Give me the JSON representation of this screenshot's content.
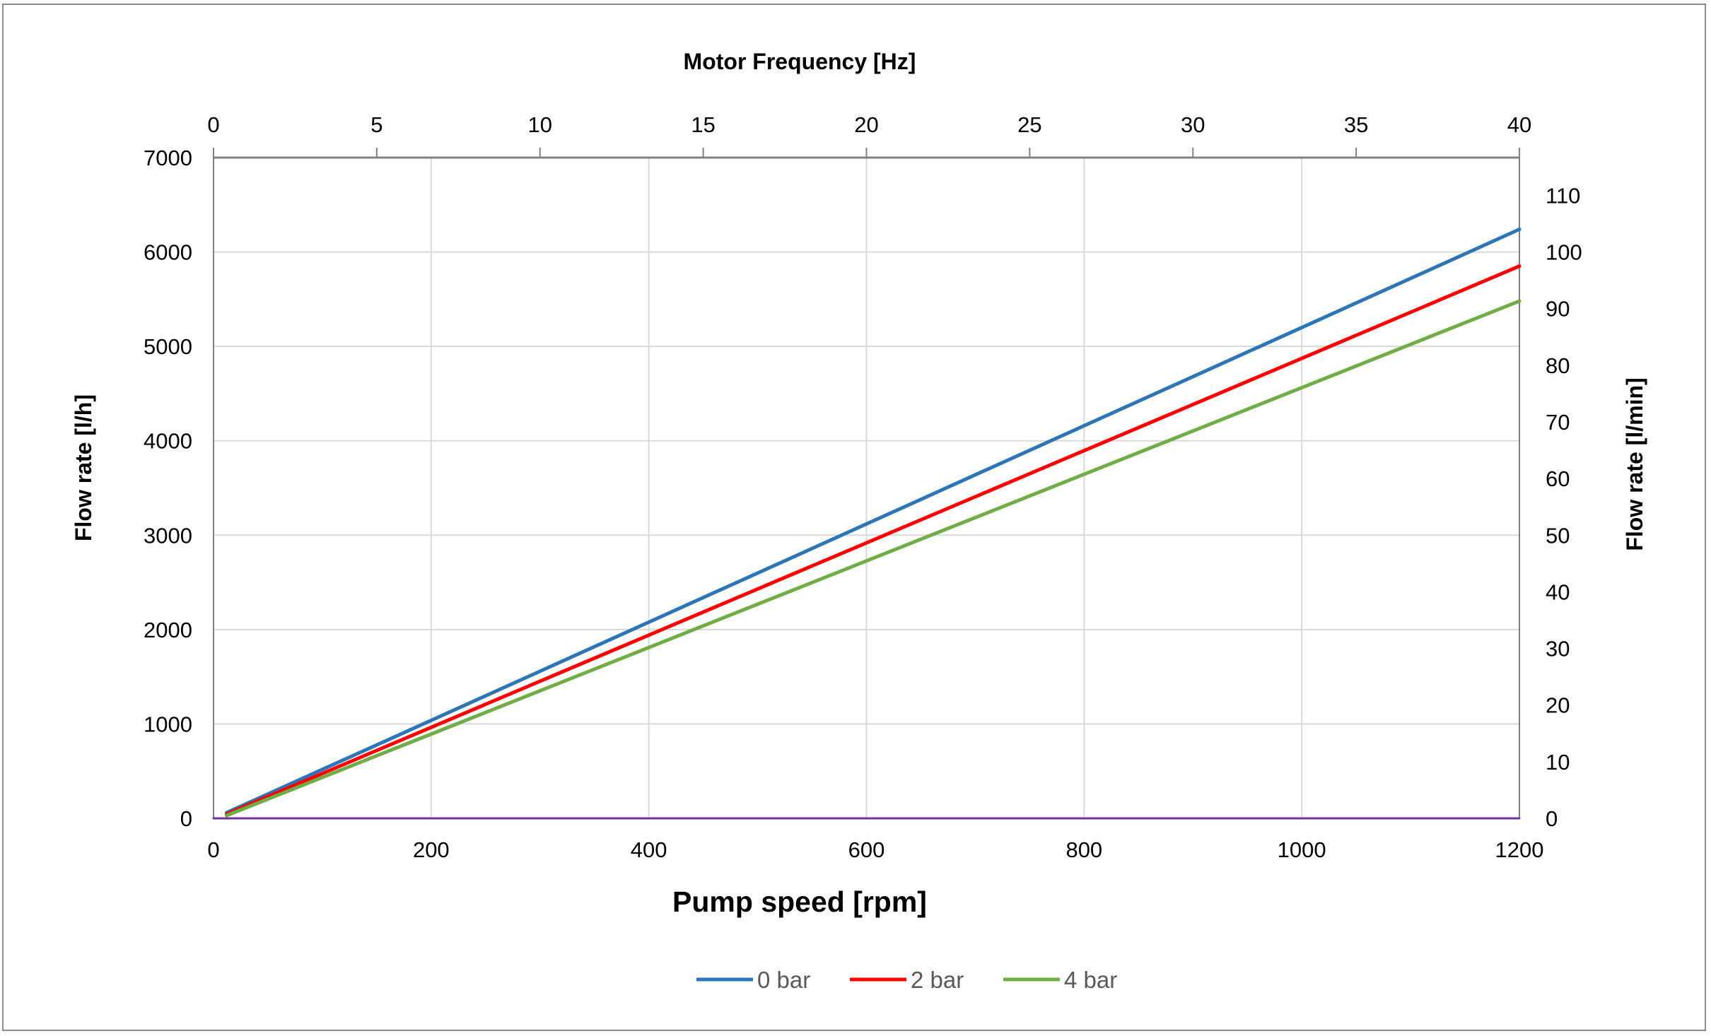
{
  "chart_data": {
    "type": "line",
    "title": "",
    "xlabel": "Pump speed [rpm]",
    "ylabel": "Flow rate [l/h]",
    "x2label": "Motor Frequency [Hz]",
    "y2label": "Flow rate [l/min]",
    "xlim": [
      0,
      1200
    ],
    "ylim": [
      0,
      7000
    ],
    "x2lim": [
      0,
      40
    ],
    "y2lim": [
      0,
      116.67
    ],
    "xticks": [
      "0",
      "200",
      "400",
      "600",
      "800",
      "1000",
      "1200"
    ],
    "yticks": [
      "0",
      "1000",
      "2000",
      "3000",
      "4000",
      "5000",
      "6000",
      "7000"
    ],
    "x2ticks": [
      "0",
      "5",
      "10",
      "15",
      "20",
      "25",
      "30",
      "35",
      "40"
    ],
    "y2ticks": [
      "0",
      "10",
      "20",
      "30",
      "40",
      "50",
      "60",
      "70",
      "80",
      "90",
      "100",
      "110"
    ],
    "grid": true,
    "legend_position": "bottom",
    "series": [
      {
        "name": "0 bar",
        "color": "#2e75b6",
        "x": [
          12,
          1200
        ],
        "y": [
          60,
          6240
        ]
      },
      {
        "name": "2 bar",
        "color": "#ff0000",
        "x": [
          12,
          1200
        ],
        "y": [
          45,
          5850
        ]
      },
      {
        "name": "4 bar",
        "color": "#70ad47",
        "x": [
          12,
          1200
        ],
        "y": [
          30,
          5480
        ]
      },
      {
        "name": "",
        "color": "#7030a0",
        "x": [
          0,
          1200
        ],
        "y": [
          0,
          0
        ]
      }
    ]
  }
}
